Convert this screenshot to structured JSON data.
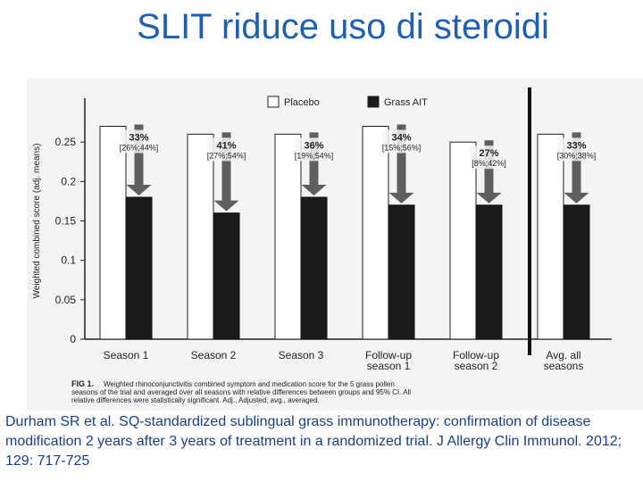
{
  "slide": {
    "title": "SLIT riduce uso di steroidi",
    "citation": "Durham SR et al. SQ-standardized sublingual grass immunotherapy: confirmation of disease modification 2 years after 3 years of treatment in a randomized trial. J Allergy Clin Immunol. 2012; 129: 717-725"
  },
  "chart_data": {
    "type": "bar",
    "ylabel": "Weighted combined score (adj. means)",
    "ylim": [
      0,
      0.3
    ],
    "yticks": [
      "0",
      "0.05",
      "0.1",
      "0.15",
      "0.2",
      "0.25"
    ],
    "categories": [
      [
        "Season 1"
      ],
      [
        "Season 2"
      ],
      [
        "Season 3"
      ],
      [
        "Follow-up",
        "season 1"
      ],
      [
        "Follow-up",
        "season 2"
      ],
      [
        "Avg. all",
        "seasons"
      ]
    ],
    "series": [
      {
        "name": "Placebo",
        "color": "#ffffff",
        "values": [
          0.27,
          0.26,
          0.26,
          0.27,
          0.25,
          0.26
        ]
      },
      {
        "name": "Grass AIT",
        "color": "#1a1a1a",
        "values": [
          0.18,
          0.16,
          0.18,
          0.17,
          0.17,
          0.17
        ]
      }
    ],
    "annotations": [
      {
        "pct": "33%",
        "ci": "[26%;44%]"
      },
      {
        "pct": "41%",
        "ci": "[27%;54%]"
      },
      {
        "pct": "36%",
        "ci": "[19%;54%]"
      },
      {
        "pct": "34%",
        "ci": "[15%;56%]"
      },
      {
        "pct": "27%",
        "ci": "[8%;42%]"
      },
      {
        "pct": "33%",
        "ci": "[30%;38%]"
      }
    ],
    "caption": {
      "label": "FIG 1.",
      "lines": [
        "Weighted rhinoconjunctivitis combined symptom and medication score for the 5 grass pollen",
        "seasons of the trial and averaged over all seasons with relative differences between groups and 95% CI. All",
        "relative differences were statistically significant. Adj., Adjusted; avg., averaged."
      ]
    },
    "colors": {
      "arrow": "#5f5f5f",
      "divider": "#111111"
    }
  }
}
